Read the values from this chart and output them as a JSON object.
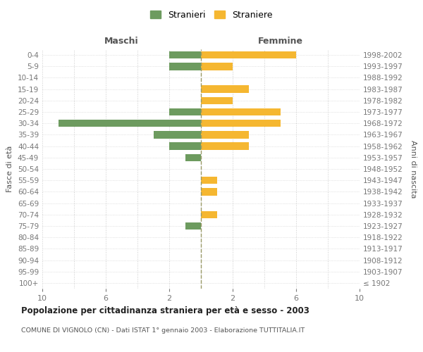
{
  "age_groups": [
    "100+",
    "95-99",
    "90-94",
    "85-89",
    "80-84",
    "75-79",
    "70-74",
    "65-69",
    "60-64",
    "55-59",
    "50-54",
    "45-49",
    "40-44",
    "35-39",
    "30-34",
    "25-29",
    "20-24",
    "15-19",
    "10-14",
    "5-9",
    "0-4"
  ],
  "birth_years": [
    "≤ 1902",
    "1903-1907",
    "1908-1912",
    "1913-1917",
    "1918-1922",
    "1923-1927",
    "1928-1932",
    "1933-1937",
    "1938-1942",
    "1943-1947",
    "1948-1952",
    "1953-1957",
    "1958-1962",
    "1963-1967",
    "1968-1972",
    "1973-1977",
    "1978-1982",
    "1983-1987",
    "1988-1992",
    "1993-1997",
    "1998-2002"
  ],
  "maschi": [
    0,
    0,
    0,
    0,
    0,
    1,
    0,
    0,
    0,
    0,
    0,
    1,
    2,
    3,
    9,
    2,
    0,
    0,
    0,
    2,
    2
  ],
  "femmine": [
    0,
    0,
    0,
    0,
    0,
    0,
    1,
    0,
    1,
    1,
    0,
    0,
    3,
    3,
    5,
    5,
    2,
    3,
    0,
    2,
    6
  ],
  "maschi_color": "#6d9b5f",
  "femmine_color": "#f5b731",
  "xlim": 10,
  "title": "Popolazione per cittadinanza straniera per età e sesso - 2003",
  "subtitle": "COMUNE DI VIGNOLO (CN) - Dati ISTAT 1° gennaio 2003 - Elaborazione TUTTITALIA.IT",
  "left_label": "Maschi",
  "right_label": "Femmine",
  "ylabel_left": "Fasce di età",
  "ylabel_right": "Anni di nascita",
  "legend_maschi": "Stranieri",
  "legend_femmine": "Straniere",
  "bg_color": "#ffffff",
  "grid_color": "#cccccc",
  "dashed_line_color": "#999966"
}
